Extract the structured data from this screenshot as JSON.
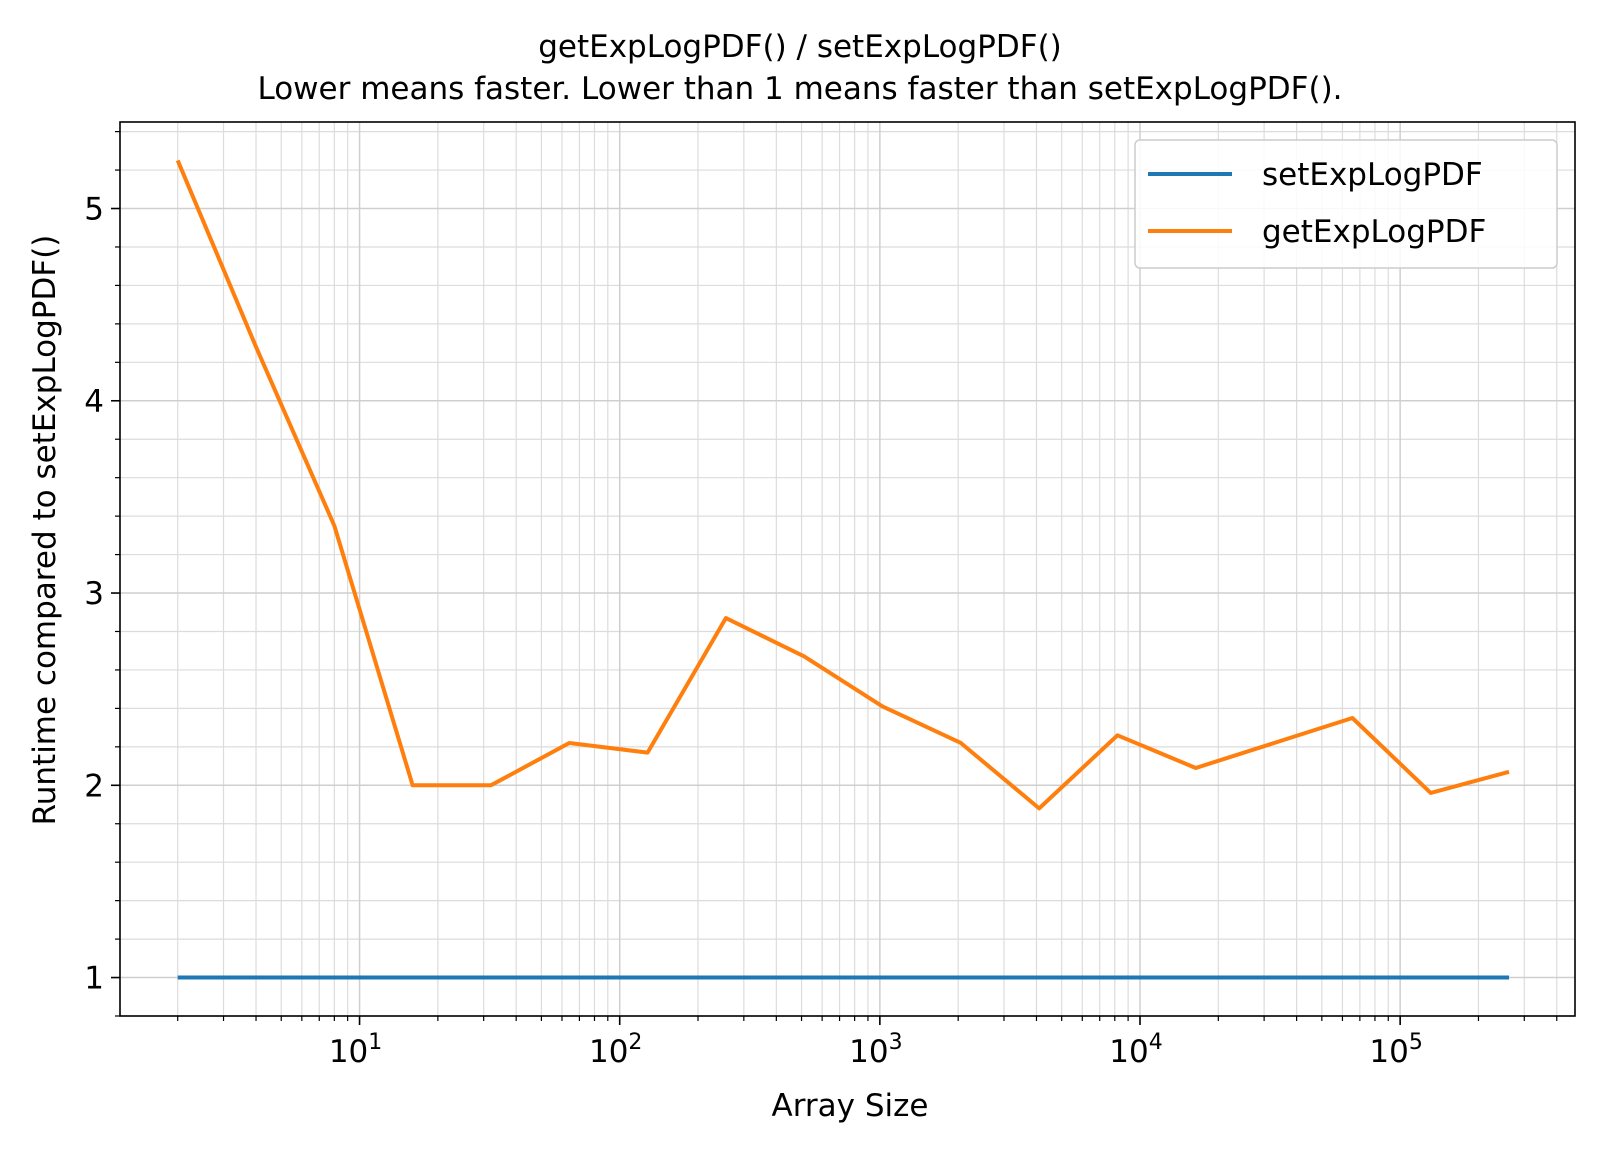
{
  "chart_data": {
    "type": "line",
    "title": "getExpLogPDF() / setExpLogPDF()",
    "subtitle": "Lower means faster. Lower than 1 means faster than setExpLogPDF().",
    "xlabel": "Array Size",
    "ylabel": "Runtime compared to setExpLogPDF()",
    "xscale": "log",
    "xlim": [
      1.2,
      470000
    ],
    "ylim": [
      0.8,
      5.45
    ],
    "grid": true,
    "legend_position": "top-right",
    "x_ticks": [
      {
        "value": 10,
        "base": "10",
        "exp": "1"
      },
      {
        "value": 100,
        "base": "10",
        "exp": "2"
      },
      {
        "value": 1000,
        "base": "10",
        "exp": "3"
      },
      {
        "value": 10000,
        "base": "10",
        "exp": "4"
      },
      {
        "value": 100000,
        "base": "10",
        "exp": "5"
      }
    ],
    "y_ticks": [
      {
        "value": 1,
        "label": "1"
      },
      {
        "value": 2,
        "label": "2"
      },
      {
        "value": 3,
        "label": "3"
      },
      {
        "value": 4,
        "label": "4"
      },
      {
        "value": 5,
        "label": "5"
      }
    ],
    "x": [
      2,
      4,
      8,
      16,
      32,
      64,
      128,
      256,
      512,
      1024,
      2048,
      4096,
      8192,
      16384,
      32768,
      65536,
      131072,
      262144
    ],
    "series": [
      {
        "name": "setExpLogPDF",
        "color": "#1f77b4",
        "values": [
          1,
          1,
          1,
          1,
          1,
          1,
          1,
          1,
          1,
          1,
          1,
          1,
          1,
          1,
          1,
          1,
          1,
          1
        ]
      },
      {
        "name": "getExpLogPDF",
        "color": "#ff7f0e",
        "values": [
          5.25,
          4.28,
          3.35,
          2.0,
          2.0,
          2.22,
          2.17,
          2.87,
          2.67,
          2.41,
          2.22,
          1.88,
          2.26,
          2.09,
          2.22,
          2.35,
          1.96,
          2.07
        ]
      }
    ]
  }
}
